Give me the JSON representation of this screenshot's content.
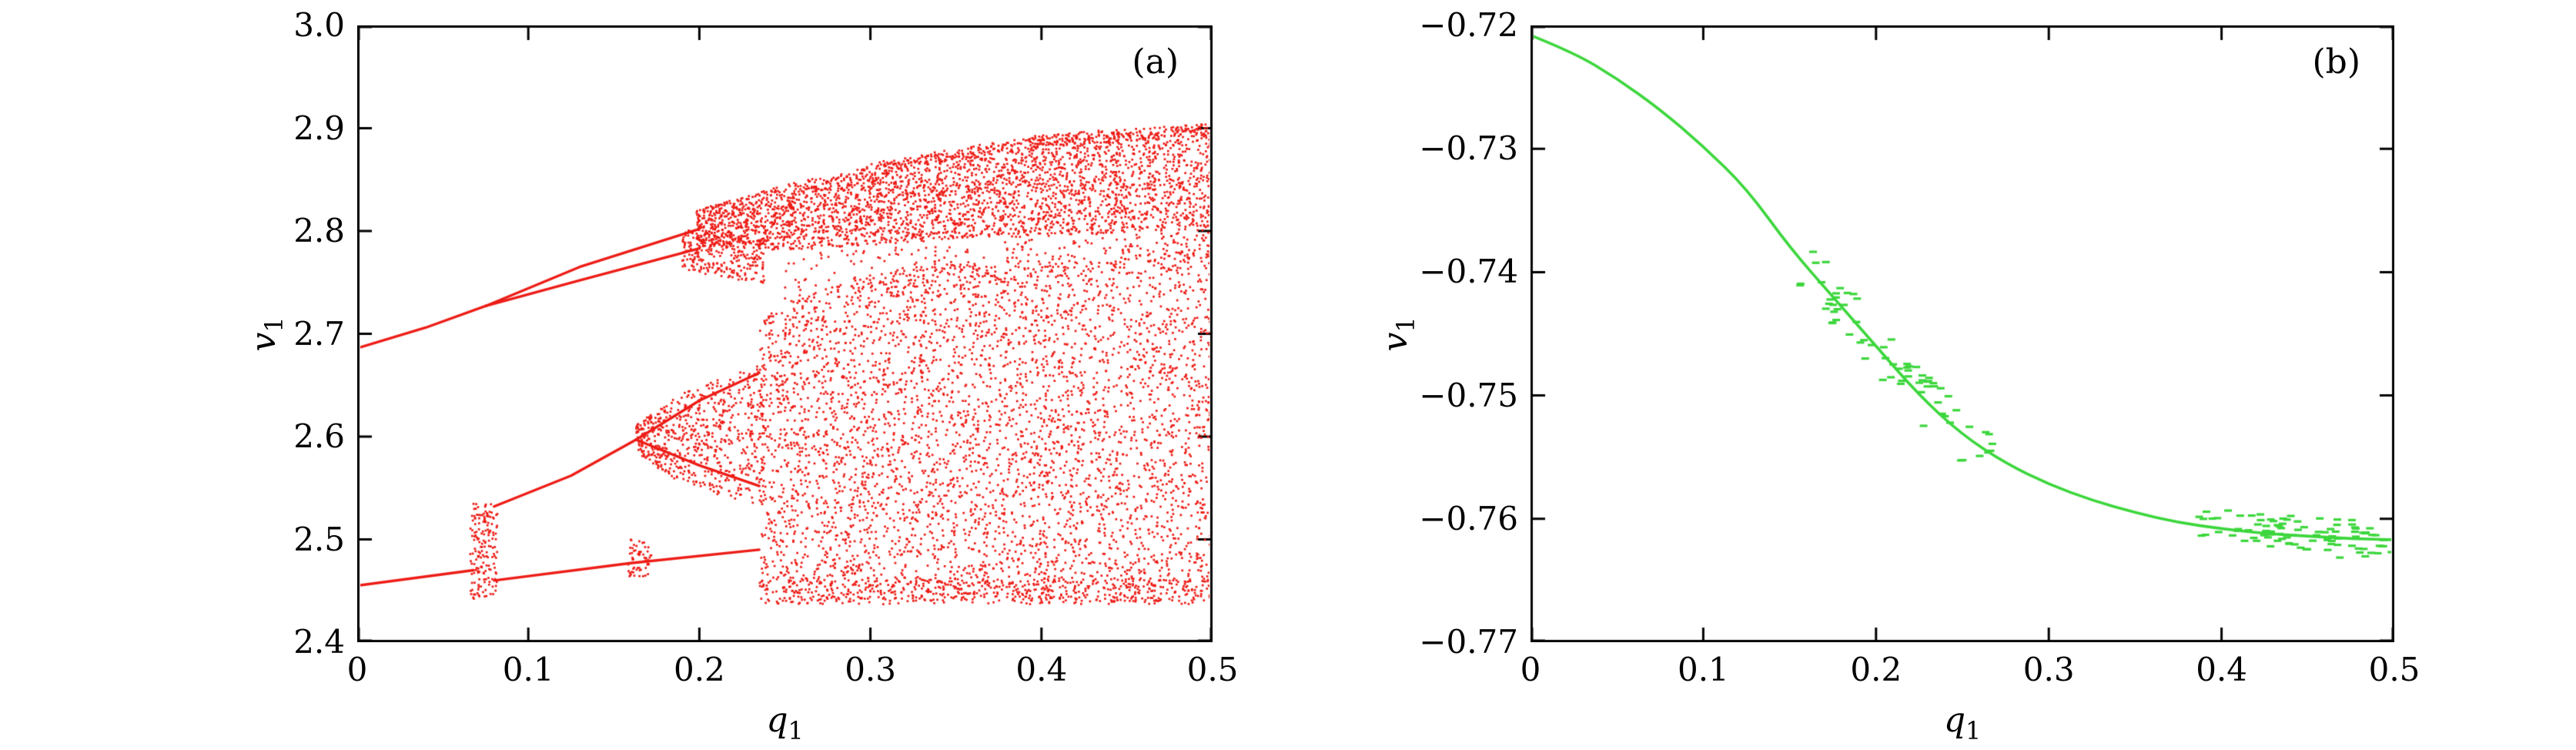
{
  "figure": {
    "background": "#ffffff"
  },
  "chart_data": [
    {
      "type": "scatter",
      "variant": "bifurcation-diagram",
      "panel_label": "(a)",
      "xlabel": {
        "base": "q",
        "sub": "1"
      },
      "ylabel": {
        "base": "v",
        "sub": "1"
      },
      "xlim": [
        0,
        0.5
      ],
      "ylim": [
        2.4,
        3.0
      ],
      "x_ticks": [
        0,
        0.1,
        0.2,
        0.3,
        0.4,
        0.5
      ],
      "x_tick_labels": [
        "0",
        "0.1",
        "0.2",
        "0.3",
        "0.4",
        "0.5"
      ],
      "y_ticks": [
        2.4,
        2.5,
        2.6,
        2.7,
        2.8,
        2.9,
        3.0
      ],
      "y_tick_labels": [
        "2.4",
        "2.5",
        "2.6",
        "2.7",
        "2.8",
        "2.9",
        "3.0"
      ],
      "color": "#ed1c16",
      "grid": false,
      "branches": [
        {
          "points": [
            [
              0,
              2.686
            ],
            [
              0.04,
              2.706
            ],
            [
              0.075,
              2.727
            ]
          ]
        },
        {
          "points": [
            [
              0.075,
              2.727
            ],
            [
              0.13,
              2.765
            ],
            [
              0.2,
              2.802
            ]
          ]
        },
        {
          "points": [
            [
              0.075,
              2.727
            ],
            [
              0.13,
              2.752
            ],
            [
              0.2,
              2.783
            ]
          ]
        },
        {
          "points": [
            [
              0,
              2.455
            ],
            [
              0.068,
              2.47
            ]
          ]
        },
        {
          "points": [
            [
              0.08,
              2.46
            ],
            [
              0.16,
              2.477
            ],
            [
              0.235,
              2.49
            ]
          ]
        },
        {
          "points": [
            [
              0.08,
              2.532
            ],
            [
              0.125,
              2.562
            ],
            [
              0.163,
              2.597
            ]
          ]
        },
        {
          "points": [
            [
              0.163,
              2.597
            ],
            [
              0.2,
              2.635
            ],
            [
              0.235,
              2.662
            ]
          ]
        },
        {
          "points": [
            [
              0.163,
              2.597
            ],
            [
              0.2,
              2.572
            ],
            [
              0.235,
              2.552
            ]
          ]
        }
      ],
      "chaotic_regions": [
        {
          "x": [
            0.066,
            0.082
          ],
          "bottom": [
            [
              0.066,
              2.442
            ],
            [
              0.082,
              2.442
            ]
          ],
          "top": [
            [
              0.066,
              2.535
            ],
            [
              0.082,
              2.535
            ]
          ],
          "n": 170
        },
        {
          "x": [
            0.158,
            0.172
          ],
          "bottom": [
            [
              0.158,
              2.463
            ],
            [
              0.172,
              2.463
            ]
          ],
          "top": [
            [
              0.158,
              2.5
            ],
            [
              0.172,
              2.5
            ]
          ],
          "n": 60
        },
        {
          "x": [
            0.163,
            0.238
          ],
          "bottom": [
            [
              0.163,
              2.585
            ],
            [
              0.19,
              2.552
            ],
            [
              0.238,
              2.533
            ]
          ],
          "top": [
            [
              0.163,
              2.612
            ],
            [
              0.19,
              2.642
            ],
            [
              0.238,
              2.672
            ]
          ],
          "n": 650
        },
        {
          "x": [
            0.19,
            0.238
          ],
          "bottom": [
            [
              0.19,
              2.762
            ],
            [
              0.238,
              2.748
            ]
          ],
          "top": [
            [
              0.19,
              2.802
            ],
            [
              0.238,
              2.792
            ]
          ],
          "n": 260
        },
        {
          "x": [
            0.235,
            0.5
          ],
          "bottom": [
            [
              0.235,
              2.44
            ],
            [
              0.5,
              2.44
            ]
          ],
          "top": [
            [
              0.235,
              2.715
            ],
            [
              0.27,
              2.742
            ],
            [
              0.32,
              2.765
            ],
            [
              0.5,
              2.78
            ]
          ],
          "n": 4300
        },
        {
          "x": [
            0.25,
            0.5
          ],
          "bottom": [
            [
              0.25,
              2.72
            ],
            [
              0.5,
              2.775
            ]
          ],
          "top": [
            [
              0.25,
              2.78
            ],
            [
              0.5,
              2.8
            ]
          ],
          "n": 300
        },
        {
          "x": [
            0.198,
            0.5
          ],
          "bottom": [
            [
              0.198,
              2.786
            ],
            [
              0.25,
              2.781
            ],
            [
              0.35,
              2.792
            ],
            [
              0.5,
              2.801
            ]
          ],
          "top": [
            [
              0.198,
              2.82
            ],
            [
              0.25,
              2.845
            ],
            [
              0.3,
              2.863
            ],
            [
              0.4,
              2.889
            ],
            [
              0.5,
              2.903
            ]
          ],
          "n": 3200
        },
        {
          "x": [
            0.235,
            0.5
          ],
          "bottom": [
            [
              0.235,
              2.437
            ],
            [
              0.5,
              2.437
            ]
          ],
          "top": [
            [
              0.235,
              2.462
            ],
            [
              0.5,
              2.462
            ]
          ],
          "n": 420
        },
        {
          "x": [
            0.3,
            0.5
          ],
          "bottom": [
            [
              0.3,
              2.853
            ],
            [
              0.4,
              2.882
            ],
            [
              0.5,
              2.893
            ]
          ],
          "top": [
            [
              0.3,
              2.866
            ],
            [
              0.4,
              2.894
            ],
            [
              0.5,
              2.905
            ]
          ],
          "n": 320
        }
      ]
    },
    {
      "type": "line",
      "panel_label": "(b)",
      "xlabel": {
        "base": "q",
        "sub": "1"
      },
      "ylabel": {
        "base": "v",
        "sub": "1"
      },
      "xlim": [
        0,
        0.5
      ],
      "ylim": [
        -0.77,
        -0.72
      ],
      "x_ticks": [
        0,
        0.1,
        0.2,
        0.3,
        0.4,
        0.5
      ],
      "x_tick_labels": [
        "0",
        "0.1",
        "0.2",
        "0.3",
        "0.4",
        "0.5"
      ],
      "y_ticks": [
        -0.77,
        -0.76,
        -0.75,
        -0.74,
        -0.73,
        -0.72
      ],
      "y_tick_labels": [
        "−0.77",
        "−0.76",
        "−0.75",
        "−0.74",
        "−0.73",
        "−0.72"
      ],
      "color": "#3cd63c",
      "grid": false,
      "curve": [
        [
          0,
          -0.7208
        ],
        [
          0.025,
          -0.7222
        ],
        [
          0.05,
          -0.7243
        ],
        [
          0.075,
          -0.7268
        ],
        [
          0.1,
          -0.7298
        ],
        [
          0.125,
          -0.7332
        ],
        [
          0.15,
          -0.738
        ],
        [
          0.175,
          -0.742
        ],
        [
          0.2,
          -0.746
        ],
        [
          0.225,
          -0.75
        ],
        [
          0.25,
          -0.7532
        ],
        [
          0.275,
          -0.7555
        ],
        [
          0.3,
          -0.7572
        ],
        [
          0.325,
          -0.7585
        ],
        [
          0.35,
          -0.7595
        ],
        [
          0.375,
          -0.7603
        ],
        [
          0.4,
          -0.7608
        ],
        [
          0.425,
          -0.7612
        ],
        [
          0.45,
          -0.7614
        ],
        [
          0.475,
          -0.7616
        ],
        [
          0.5,
          -0.7617
        ]
      ],
      "noise_clusters": [
        {
          "x": [
            0.155,
            0.27
          ],
          "dy": 0.0022,
          "n": 70
        },
        {
          "x": [
            0.38,
            0.485
          ],
          "dy": 0.0016,
          "n": 55
        },
        {
          "x": [
            0.42,
            0.5
          ],
          "dy": 0.0012,
          "n": 40
        }
      ]
    }
  ]
}
